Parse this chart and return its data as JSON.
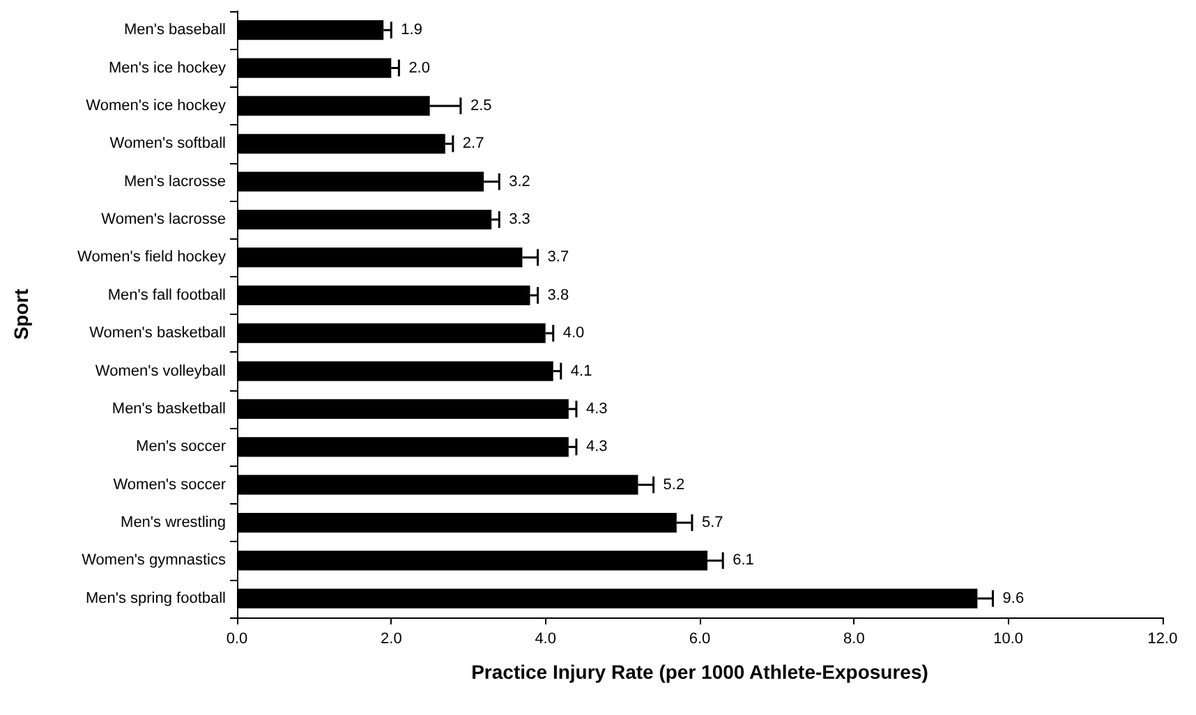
{
  "chart_data": {
    "type": "bar",
    "orientation": "horizontal",
    "xlabel": "Practice Injury Rate (per 1000 Athlete-Exposures)",
    "ylabel": "Sport",
    "categories": [
      "Men's baseball",
      "Men's ice hockey",
      "Women's ice hockey",
      "Women's softball",
      "Men's lacrosse",
      "Women's lacrosse",
      "Women's field hockey",
      "Men's fall football",
      "Women's basketball",
      "Women's volleyball",
      "Men's basketball",
      "Men's soccer",
      "Women's soccer",
      "Men's wrestling",
      "Women's gymnastics",
      "Men's spring football"
    ],
    "values": [
      1.9,
      2.0,
      2.5,
      2.7,
      3.2,
      3.3,
      3.7,
      3.8,
      4.0,
      4.1,
      4.3,
      4.3,
      5.2,
      5.7,
      6.1,
      9.6
    ],
    "errors": [
      [
        1.9,
        2.0
      ],
      [
        2.0,
        2.1
      ],
      [
        2.5,
        2.9
      ],
      [
        2.7,
        2.8
      ],
      [
        3.2,
        3.4
      ],
      [
        3.3,
        3.4
      ],
      [
        3.7,
        3.9
      ],
      [
        3.8,
        3.9
      ],
      [
        4.0,
        4.1
      ],
      [
        4.1,
        4.2
      ],
      [
        4.3,
        4.4
      ],
      [
        4.3,
        4.4
      ],
      [
        5.2,
        5.4
      ],
      [
        5.7,
        5.9
      ],
      [
        6.1,
        6.3
      ],
      [
        9.6,
        9.8
      ]
    ],
    "value_labels": [
      "1.9",
      "2.0",
      "2.5",
      "2.7",
      "3.2",
      "3.3",
      "3.7",
      "3.8",
      "4.0",
      "4.1",
      "4.3",
      "4.3",
      "5.2",
      "5.7",
      "6.1",
      "9.6"
    ],
    "color": "#000000",
    "grid": false,
    "xlim": [
      0,
      12
    ],
    "xticks": [
      {
        "value": 0,
        "label": "0.0"
      },
      {
        "value": 2,
        "label": "2.0"
      },
      {
        "value": 4,
        "label": "4.0"
      },
      {
        "value": 6,
        "label": "6.0"
      },
      {
        "value": 8,
        "label": "8.0"
      },
      {
        "value": 10,
        "label": "10.0"
      },
      {
        "value": 12,
        "label": "12.0"
      }
    ]
  }
}
